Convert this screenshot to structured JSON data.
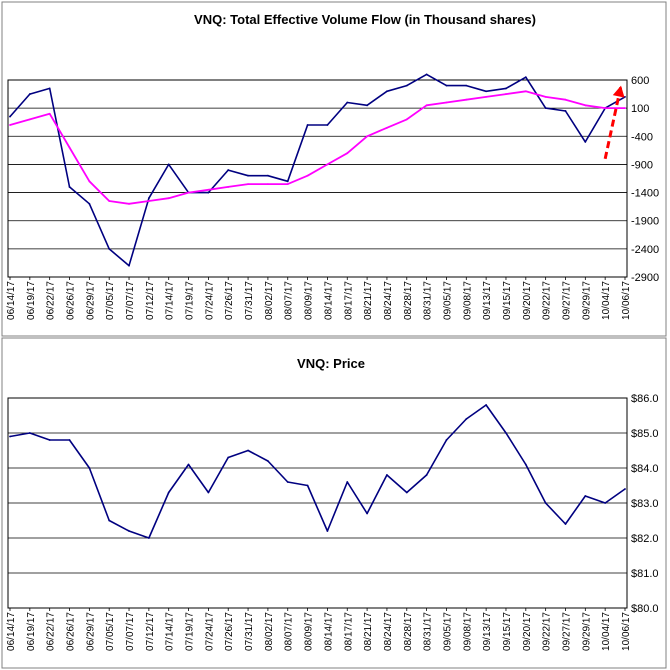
{
  "charts": [
    {
      "title": "VNQ: Total Effective Volume Flow (in Thousand shares)",
      "y_ticks": [
        "600",
        "100",
        "-400",
        "-900",
        "-1400",
        "-1900",
        "-2400",
        "-2900"
      ],
      "x_ticks": [
        "06/14/17",
        "06/19/17",
        "06/22/17",
        "06/26/17",
        "06/29/17",
        "07/05/17",
        "07/07/17",
        "07/12/17",
        "07/14/17",
        "07/19/17",
        "07/24/17",
        "07/26/17",
        "07/31/17",
        "08/02/17",
        "08/07/17",
        "08/09/17",
        "08/14/17",
        "08/17/17",
        "08/21/17",
        "08/24/17",
        "08/28/17",
        "08/31/17",
        "09/05/17",
        "09/08/17",
        "09/13/17",
        "09/15/17",
        "09/20/17",
        "09/22/17",
        "09/27/17",
        "09/29/17",
        "10/04/17",
        "10/06/17"
      ]
    },
    {
      "title": "VNQ: Price",
      "y_ticks": [
        "$86.0",
        "$85.0",
        "$84.0",
        "$83.0",
        "$82.0",
        "$81.0",
        "$80.0"
      ],
      "x_ticks": [
        "06/14/17",
        "06/19/17",
        "06/22/17",
        "06/26/17",
        "06/29/17",
        "07/05/17",
        "07/07/17",
        "07/12/17",
        "07/14/17",
        "07/19/17",
        "07/24/17",
        "07/26/17",
        "07/31/17",
        "08/02/17",
        "08/07/17",
        "08/09/17",
        "08/14/17",
        "08/17/17",
        "08/21/17",
        "08/24/17",
        "08/28/17",
        "08/31/17",
        "09/05/17",
        "09/08/17",
        "09/13/17",
        "09/15/17",
        "09/20/17",
        "09/22/17",
        "09/27/17",
        "09/29/17",
        "10/04/17",
        "10/06/17"
      ]
    }
  ],
  "chart_data": [
    {
      "type": "line",
      "title": "VNQ: Total Effective Volume Flow (in Thousand shares)",
      "ylim": [
        -2900,
        600
      ],
      "line_color": "#000080",
      "ma_color": "#ff00ff",
      "arrow_color": "#ff0000",
      "x": [
        "06/14/17",
        "06/19/17",
        "06/22/17",
        "06/26/17",
        "06/29/17",
        "07/05/17",
        "07/07/17",
        "07/12/17",
        "07/14/17",
        "07/19/17",
        "07/24/17",
        "07/26/17",
        "07/31/17",
        "08/02/17",
        "08/07/17",
        "08/09/17",
        "08/14/17",
        "08/17/17",
        "08/21/17",
        "08/24/17",
        "08/28/17",
        "08/31/17",
        "09/05/17",
        "09/08/17",
        "09/13/17",
        "09/15/17",
        "09/20/17",
        "09/22/17",
        "09/27/17",
        "09/29/17",
        "10/04/17",
        "10/06/17"
      ],
      "series": [
        {
          "values": [
            -50,
            350,
            450,
            -1300,
            -1600,
            -2400,
            -2700,
            -1500,
            -900,
            -1400,
            -1400,
            -1000,
            -1100,
            -1100,
            -1200,
            -200,
            -200,
            200,
            150,
            400,
            500,
            700,
            500,
            500,
            400,
            450,
            650,
            100,
            50,
            -500,
            100,
            300
          ]
        },
        {
          "values": [
            -200,
            -100,
            0,
            -600,
            -1200,
            -1550,
            -1600,
            -1550,
            -1500,
            -1400,
            -1350,
            -1300,
            -1250,
            -1250,
            -1250,
            -1100,
            -900,
            -700,
            -400,
            -250,
            -100,
            150,
            200,
            250,
            300,
            350,
            400,
            300,
            250,
            150,
            100,
            100
          ]
        }
      ],
      "trend_arrow": {
        "from": [
          "10/04/17",
          -800
        ],
        "to": [
          "10/06/17",
          500
        ]
      }
    },
    {
      "type": "line",
      "title": "VNQ: Price",
      "ylim": [
        80.0,
        86.0
      ],
      "line_color": "#000080",
      "x": [
        "06/14/17",
        "06/19/17",
        "06/22/17",
        "06/26/17",
        "06/29/17",
        "07/05/17",
        "07/07/17",
        "07/12/17",
        "07/14/17",
        "07/19/17",
        "07/24/17",
        "07/26/17",
        "07/31/17",
        "08/02/17",
        "08/07/17",
        "08/09/17",
        "08/14/17",
        "08/17/17",
        "08/21/17",
        "08/24/17",
        "08/28/17",
        "08/31/17",
        "09/05/17",
        "09/08/17",
        "09/13/17",
        "09/15/17",
        "09/20/17",
        "09/22/17",
        "09/27/17",
        "09/29/17",
        "10/04/17",
        "10/06/17"
      ],
      "series": [
        {
          "values": [
            84.9,
            85.0,
            84.8,
            84.8,
            84.0,
            82.5,
            82.2,
            82.0,
            83.3,
            84.1,
            83.3,
            84.3,
            84.5,
            84.2,
            83.6,
            83.5,
            82.2,
            83.6,
            82.7,
            83.8,
            83.3,
            83.8,
            84.8,
            85.4,
            85.8,
            85.0,
            84.1,
            83.0,
            82.4,
            83.2,
            83.0,
            83.4
          ]
        }
      ]
    }
  ]
}
